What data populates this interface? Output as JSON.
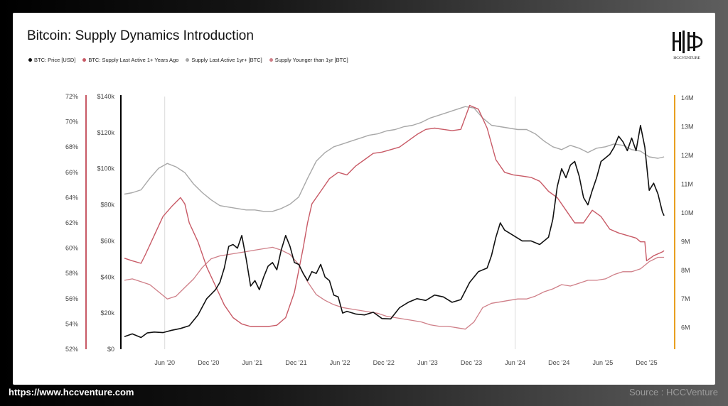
{
  "footer": {
    "url": "https://www.hccventure.com",
    "source": "Source : HCCVenture"
  },
  "logo": {
    "text": "HCCVENTURE",
    "icon": "hcc-monogram-icon"
  },
  "colors": {
    "price": "#111111",
    "supply_active_1y_plus_pct": "#c85a66",
    "supply_active_1y_plus_btc": "#a8a8a8",
    "supply_younger_1y": "#cf7f88",
    "axis_price": "#000000",
    "axis_pct": "#c85a66",
    "axis_btc": "#e8a020"
  },
  "chart_data": {
    "type": "line",
    "title": "Bitcoin: Supply Dynamics Introduction",
    "legend": [
      "BTC: Price [USD]",
      "BTC: Supply Last Active 1+ Years Ago",
      "Supply Last Active 1yr+ [BTC]",
      "Supply Younger than 1yr [BTC]"
    ],
    "legend_placement": "top-left",
    "x_ticks": [
      "Jun '20",
      "Dec '20",
      "Jun '21",
      "Dec '21",
      "Jun '22",
      "Dec '22",
      "Jun '23",
      "Dec '23",
      "Jun '24",
      "Dec '24",
      "Jun '25",
      "Dec '25"
    ],
    "x_tick_dates": [
      2020.42,
      2020.92,
      2021.42,
      2021.92,
      2022.42,
      2022.92,
      2023.42,
      2023.92,
      2024.42,
      2024.92,
      2025.42,
      2025.92
    ],
    "xlim": [
      2019.96,
      2026.2
    ],
    "y_left_pct": {
      "ticks": [
        "72%",
        "70%",
        "68%",
        "66%",
        "64%",
        "62%",
        "60%",
        "58%",
        "56%",
        "54%",
        "52%"
      ],
      "range": [
        52,
        72
      ]
    },
    "y_left_usd": {
      "ticks": [
        "$140k",
        "$120k",
        "$100k",
        "$80k",
        "$60k",
        "$40k",
        "$20k",
        "$0"
      ],
      "range": [
        0,
        140000
      ]
    },
    "y_right_btc": {
      "ticks": [
        "14M",
        "13M",
        "12M",
        "11M",
        "10M",
        "9M",
        "8M",
        "7M",
        "6M"
      ],
      "range": [
        5.25,
        14.05
      ],
      "unit_scale": "millions BTC"
    },
    "grid": "vertical lines at Jun '20 and Jun '24 only",
    "series": [
      {
        "name": "BTC: Price [USD]",
        "axis": "usd",
        "color": "#111111",
        "x": [
          2019.96,
          2020.05,
          2020.15,
          2020.22,
          2020.3,
          2020.4,
          2020.5,
          2020.6,
          2020.7,
          2020.8,
          2020.9,
          2021.0,
          2021.05,
          2021.1,
          2021.15,
          2021.2,
          2021.25,
          2021.3,
          2021.35,
          2021.4,
          2021.45,
          2021.5,
          2021.55,
          2021.6,
          2021.65,
          2021.7,
          2021.75,
          2021.8,
          2021.85,
          2021.9,
          2021.95,
          2022.0,
          2022.05,
          2022.1,
          2022.15,
          2022.2,
          2022.25,
          2022.3,
          2022.35,
          2022.4,
          2022.45,
          2022.5,
          2022.6,
          2022.7,
          2022.8,
          2022.9,
          2023.0,
          2023.1,
          2023.2,
          2023.3,
          2023.4,
          2023.5,
          2023.6,
          2023.7,
          2023.8,
          2023.9,
          2024.0,
          2024.1,
          2024.15,
          2024.2,
          2024.25,
          2024.3,
          2024.4,
          2024.5,
          2024.6,
          2024.7,
          2024.8,
          2024.85,
          2024.9,
          2024.95,
          2025.0,
          2025.05,
          2025.1,
          2025.15,
          2025.2,
          2025.25,
          2025.3,
          2025.35,
          2025.4,
          2025.45,
          2025.5,
          2025.55,
          2025.6,
          2025.65,
          2025.7,
          2025.75,
          2025.8,
          2025.85,
          2025.9,
          2025.95,
          2026.0,
          2026.05,
          2026.1,
          2026.12
        ],
        "values": [
          7000,
          8500,
          6500,
          9000,
          9500,
          9200,
          10500,
          11500,
          13000,
          19000,
          28000,
          33000,
          37000,
          45000,
          57000,
          58000,
          56000,
          63000,
          50000,
          35000,
          38000,
          33000,
          40000,
          46000,
          48000,
          44000,
          55000,
          63000,
          57000,
          48000,
          47000,
          42000,
          38000,
          43000,
          42000,
          47000,
          40000,
          38000,
          30000,
          29000,
          20000,
          21000,
          19500,
          19000,
          20500,
          17000,
          16800,
          23000,
          26000,
          28000,
          27000,
          30000,
          29000,
          26000,
          27500,
          37000,
          43000,
          45000,
          52000,
          62000,
          70000,
          66000,
          63000,
          60000,
          60000,
          58000,
          62000,
          72000,
          90000,
          100000,
          95000,
          102000,
          104000,
          96000,
          84000,
          80000,
          88000,
          95000,
          104000,
          106000,
          108000,
          112000,
          118000,
          115000,
          110000,
          117000,
          110000,
          124000,
          112000,
          88000,
          92000,
          86000,
          76000,
          74000
        ]
      },
      {
        "name": "BTC: Supply Last Active 1+ Years Ago",
        "axis": "pct",
        "color": "#c85a66",
        "x": [
          2019.96,
          2020.05,
          2020.15,
          2020.2,
          2020.3,
          2020.4,
          2020.5,
          2020.6,
          2020.65,
          2020.7,
          2020.8,
          2020.9,
          2021.0,
          2021.1,
          2021.2,
          2021.3,
          2021.4,
          2021.5,
          2021.6,
          2021.7,
          2021.8,
          2021.9,
          2022.0,
          2022.05,
          2022.1,
          2022.2,
          2022.3,
          2022.4,
          2022.5,
          2022.6,
          2022.7,
          2022.8,
          2022.9,
          2023.0,
          2023.1,
          2023.2,
          2023.3,
          2023.4,
          2023.5,
          2023.6,
          2023.7,
          2023.8,
          2023.9,
          2024.0,
          2024.1,
          2024.2,
          2024.3,
          2024.4,
          2024.5,
          2024.6,
          2024.7,
          2024.8,
          2024.9,
          2025.0,
          2025.1,
          2025.2,
          2025.3,
          2025.4,
          2025.5,
          2025.6,
          2025.7,
          2025.8,
          2025.85,
          2025.9,
          2025.92,
          2026.0,
          2026.1,
          2026.12
        ],
        "values": [
          59.2,
          59.0,
          58.8,
          59.5,
          61.0,
          62.5,
          63.3,
          64.0,
          63.5,
          62.0,
          60.5,
          58.5,
          57.0,
          55.5,
          54.5,
          54.0,
          53.8,
          53.8,
          53.8,
          53.9,
          54.5,
          56.5,
          60.0,
          62.0,
          63.5,
          64.5,
          65.5,
          66.0,
          65.8,
          66.5,
          67.0,
          67.5,
          67.6,
          67.8,
          68.0,
          68.5,
          69.0,
          69.4,
          69.5,
          69.4,
          69.3,
          69.4,
          71.3,
          71.0,
          69.5,
          67.0,
          66.0,
          65.8,
          65.7,
          65.6,
          65.3,
          64.5,
          64.0,
          63.0,
          62.0,
          62.0,
          63.0,
          62.5,
          61.5,
          61.2,
          61.0,
          60.8,
          60.5,
          60.5,
          59.0,
          59.4,
          59.7,
          59.8
        ]
      },
      {
        "name": "Supply Last Active 1yr+ [BTC]",
        "axis": "btc",
        "color": "#a8a8a8",
        "x": [
          2019.96,
          2020.05,
          2020.15,
          2020.25,
          2020.35,
          2020.45,
          2020.55,
          2020.65,
          2020.75,
          2020.85,
          2020.95,
          2021.05,
          2021.15,
          2021.25,
          2021.35,
          2021.45,
          2021.55,
          2021.65,
          2021.75,
          2021.85,
          2021.95,
          2022.05,
          2022.15,
          2022.25,
          2022.35,
          2022.45,
          2022.55,
          2022.65,
          2022.75,
          2022.85,
          2022.95,
          2023.05,
          2023.15,
          2023.25,
          2023.35,
          2023.45,
          2023.55,
          2023.65,
          2023.75,
          2023.85,
          2023.95,
          2024.05,
          2024.15,
          2024.25,
          2024.35,
          2024.45,
          2024.55,
          2024.65,
          2024.75,
          2024.85,
          2024.95,
          2025.05,
          2025.15,
          2025.25,
          2025.35,
          2025.45,
          2025.55,
          2025.65,
          2025.75,
          2025.85,
          2025.95,
          2026.05,
          2026.12
        ],
        "values": [
          10.65,
          10.7,
          10.8,
          11.2,
          11.55,
          11.72,
          11.6,
          11.4,
          11.0,
          10.7,
          10.45,
          10.25,
          10.2,
          10.15,
          10.1,
          10.1,
          10.05,
          10.05,
          10.15,
          10.3,
          10.55,
          11.2,
          11.8,
          12.1,
          12.3,
          12.4,
          12.5,
          12.6,
          12.7,
          12.75,
          12.85,
          12.9,
          13.0,
          13.05,
          13.15,
          13.3,
          13.4,
          13.5,
          13.6,
          13.7,
          13.65,
          13.3,
          13.05,
          13.0,
          12.95,
          12.9,
          12.9,
          12.75,
          12.5,
          12.3,
          12.2,
          12.35,
          12.25,
          12.1,
          12.25,
          12.3,
          12.4,
          12.35,
          12.2,
          12.15,
          11.95,
          11.9,
          11.95
        ]
      },
      {
        "name": "Supply Younger than 1yr [BTC]",
        "axis": "btc",
        "color": "#cf7f88",
        "x": [
          2019.96,
          2020.05,
          2020.15,
          2020.25,
          2020.35,
          2020.45,
          2020.55,
          2020.65,
          2020.75,
          2020.85,
          2020.95,
          2021.05,
          2021.15,
          2021.25,
          2021.35,
          2021.45,
          2021.55,
          2021.65,
          2021.75,
          2021.85,
          2021.95,
          2022.05,
          2022.15,
          2022.25,
          2022.35,
          2022.45,
          2022.55,
          2022.65,
          2022.75,
          2022.85,
          2022.95,
          2023.05,
          2023.15,
          2023.25,
          2023.35,
          2023.45,
          2023.55,
          2023.65,
          2023.75,
          2023.85,
          2023.95,
          2024.05,
          2024.15,
          2024.25,
          2024.35,
          2024.45,
          2024.55,
          2024.65,
          2024.75,
          2024.85,
          2024.95,
          2025.05,
          2025.15,
          2025.25,
          2025.35,
          2025.45,
          2025.55,
          2025.65,
          2025.75,
          2025.85,
          2025.95,
          2026.05,
          2026.12
        ],
        "values": [
          7.65,
          7.7,
          7.6,
          7.5,
          7.25,
          7.0,
          7.1,
          7.4,
          7.7,
          8.1,
          8.4,
          8.5,
          8.55,
          8.6,
          8.65,
          8.7,
          8.75,
          8.8,
          8.7,
          8.55,
          8.2,
          7.6,
          7.15,
          6.95,
          6.8,
          6.7,
          6.65,
          6.6,
          6.55,
          6.5,
          6.4,
          6.35,
          6.3,
          6.25,
          6.2,
          6.1,
          6.05,
          6.05,
          6.0,
          5.95,
          6.2,
          6.7,
          6.85,
          6.9,
          6.95,
          7.0,
          7.0,
          7.1,
          7.25,
          7.35,
          7.5,
          7.45,
          7.55,
          7.65,
          7.65,
          7.7,
          7.85,
          7.95,
          7.95,
          8.05,
          8.3,
          8.45,
          8.45
        ]
      }
    ]
  }
}
